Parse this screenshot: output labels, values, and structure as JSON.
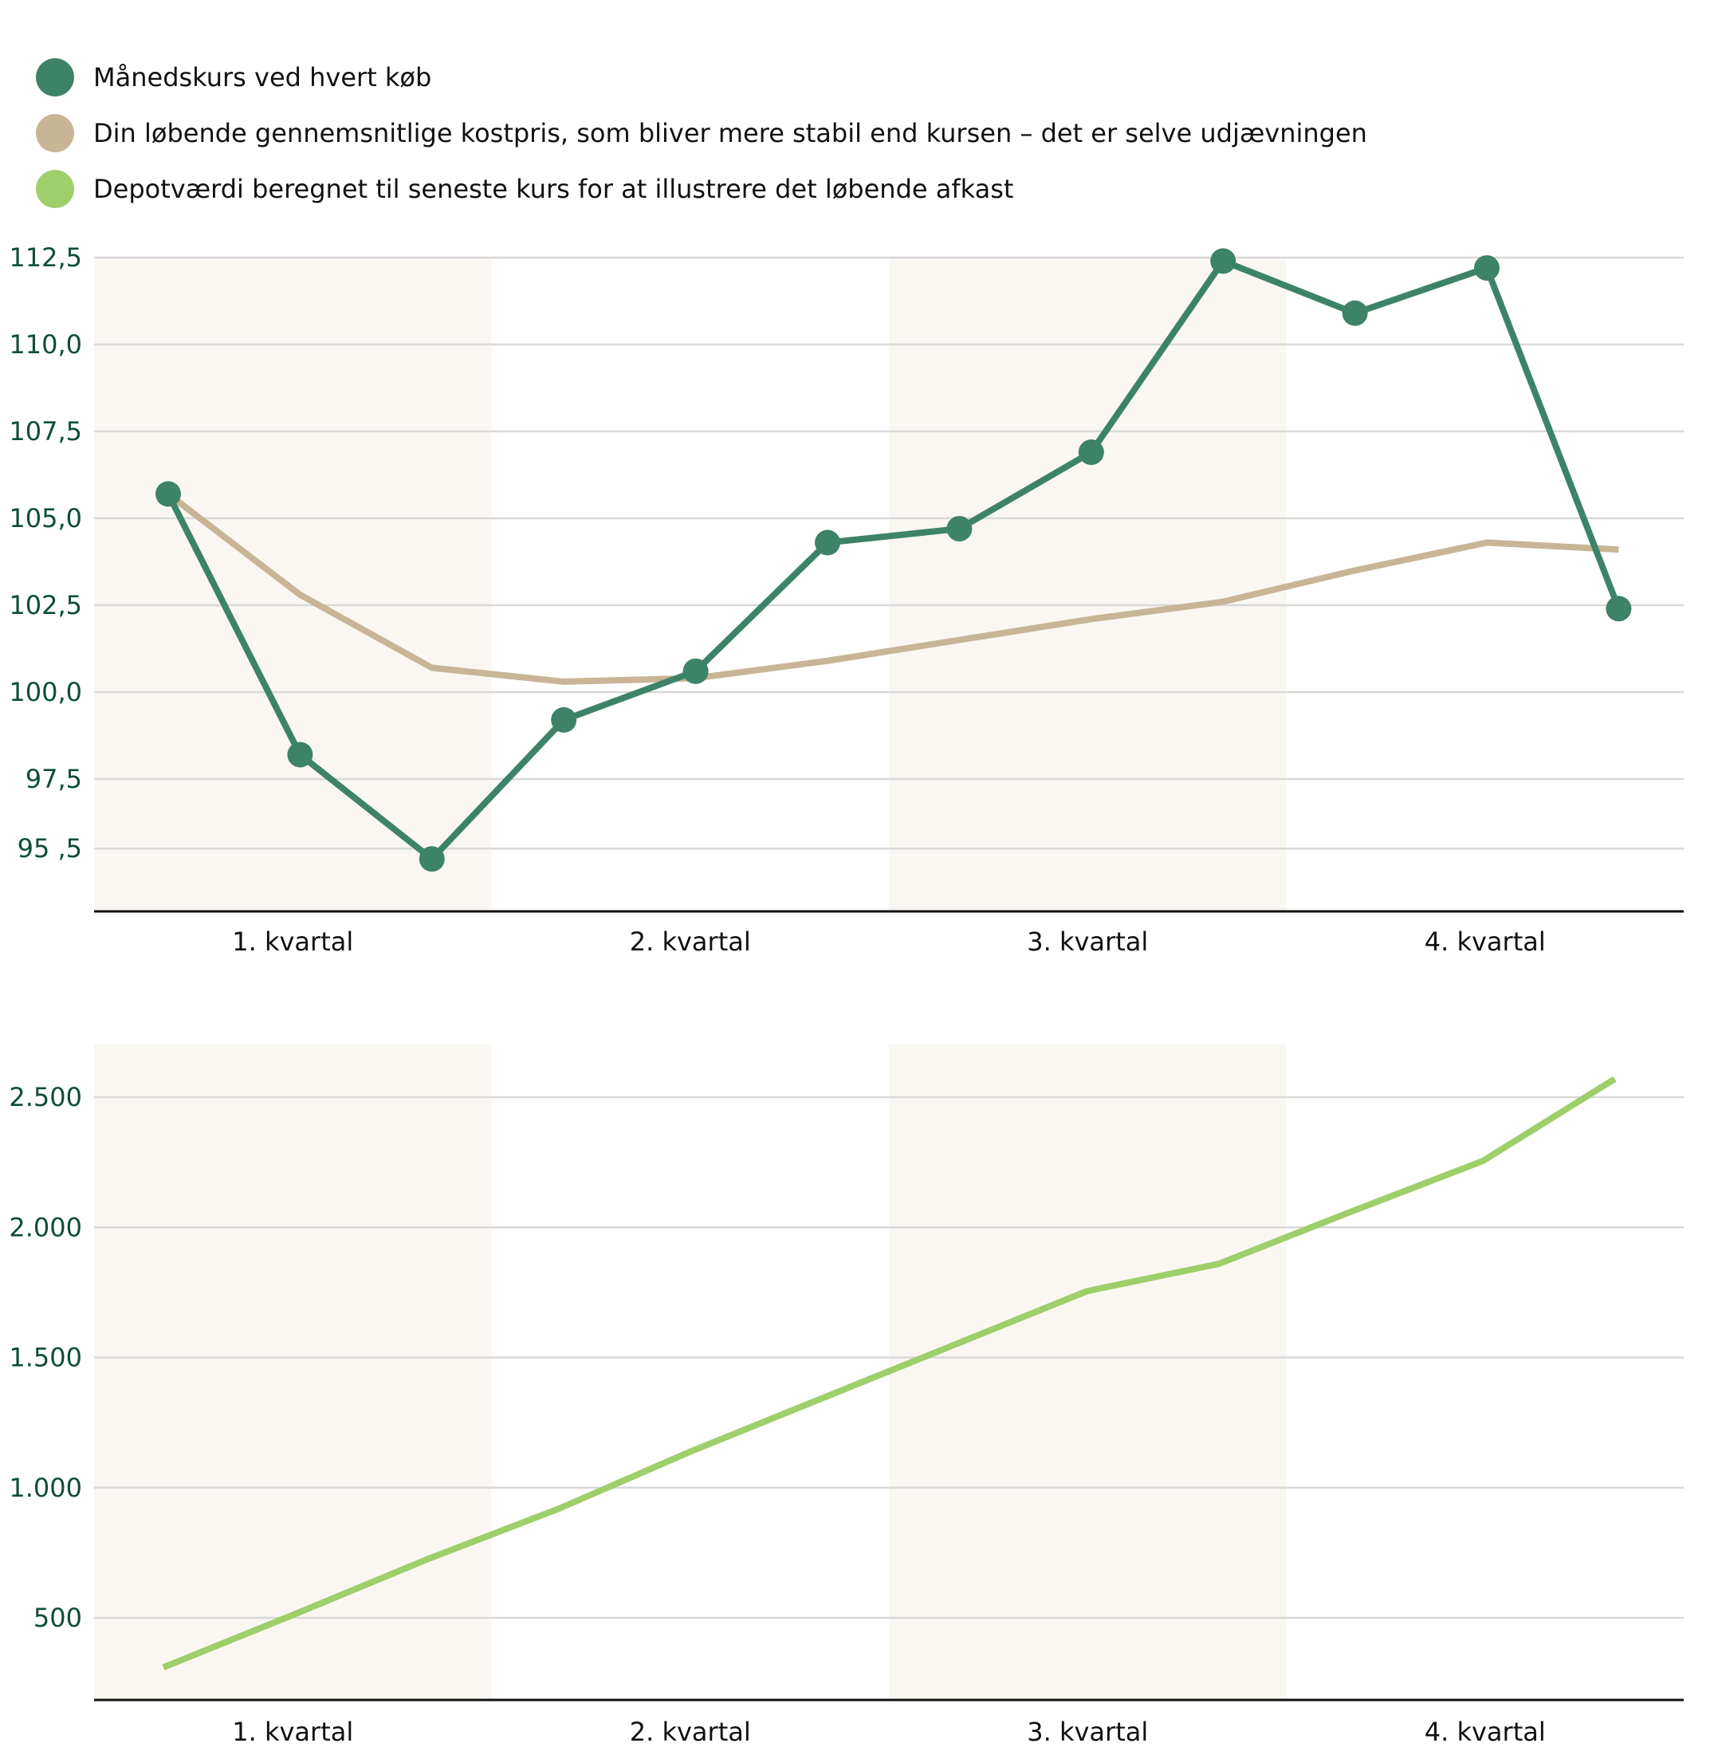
{
  "legend": [
    {
      "label": "Månedskurs ved hvert køb",
      "color": "#3d8368"
    },
    {
      "label": "Din løbende gennemsnitlige kostpris, som bliver mere stabil end kursen – det er selve udjævningen",
      "color": "#c8b596"
    },
    {
      "label": "Depotværdi beregnet til seneste kurs for at illustrere det løbende afkast",
      "color": "#9ecf6a"
    }
  ],
  "colors": {
    "band": "#faf7f3",
    "grid": "#d9d9d9",
    "axis": "#111111",
    "tick_text": "#0e4d3c",
    "category_text": "#111111",
    "category_highlight": "#0e4d3c"
  },
  "chart_data": [
    {
      "type": "line",
      "categories": [
        "1. kvartal",
        "2. kvartal",
        "3. kvartal",
        "4. kvartal"
      ],
      "highlight_category": "4. kvartal",
      "ylim": [
        95,
        113
      ],
      "y_ticks": [
        95.5,
        97.5,
        100.0,
        102.5,
        105.0,
        107.5,
        110.0,
        112.5
      ],
      "y_tick_labels": [
        "95 ,5",
        "97,5",
        "100,0",
        "102,5",
        "105,0",
        "107,5",
        "110,0",
        "112,5"
      ],
      "grid": true,
      "x": [
        1,
        2,
        3,
        4,
        5,
        6,
        7,
        8,
        9,
        10,
        11,
        12
      ],
      "series": [
        {
          "name": "Månedskurs ved hvert køb",
          "color": "#3d8368",
          "markers": true,
          "values": [
            105.7,
            98.2,
            95.2,
            99.2,
            100.6,
            104.3,
            104.7,
            106.9,
            112.4,
            110.9,
            112.2,
            102.4
          ]
        },
        {
          "name": "Din løbende gennemsnitlige kostpris, som bliver mere stabil end kursen – det er selve udjævningen",
          "color": "#c8b596",
          "markers": false,
          "values": [
            105.7,
            102.8,
            100.7,
            100.3,
            100.4,
            100.9,
            101.5,
            102.1,
            102.6,
            103.5,
            104.3,
            104.1
          ]
        }
      ]
    },
    {
      "type": "line",
      "categories": [
        "1. kvartal",
        "2. kvartal",
        "3. kvartal",
        "4. kvartal"
      ],
      "ylim": [
        200,
        2700
      ],
      "y_ticks": [
        500,
        1000,
        1500,
        2000,
        2500
      ],
      "y_tick_labels": [
        "500",
        "1.000",
        "1.500",
        "2.000",
        "2.500"
      ],
      "grid": true,
      "x": [
        1,
        2,
        3,
        4,
        5,
        6,
        7,
        8,
        9,
        10,
        11,
        12
      ],
      "series": [
        {
          "name": "Depotværdi beregnet til seneste kurs for at illustrere det løbende afkast",
          "color": "#9ecf6a",
          "markers": false,
          "values": [
            310,
            515,
            725,
            920,
            1140,
            1345,
            1550,
            1755,
            1860,
            2060,
            2255,
            2570
          ]
        }
      ]
    }
  ]
}
